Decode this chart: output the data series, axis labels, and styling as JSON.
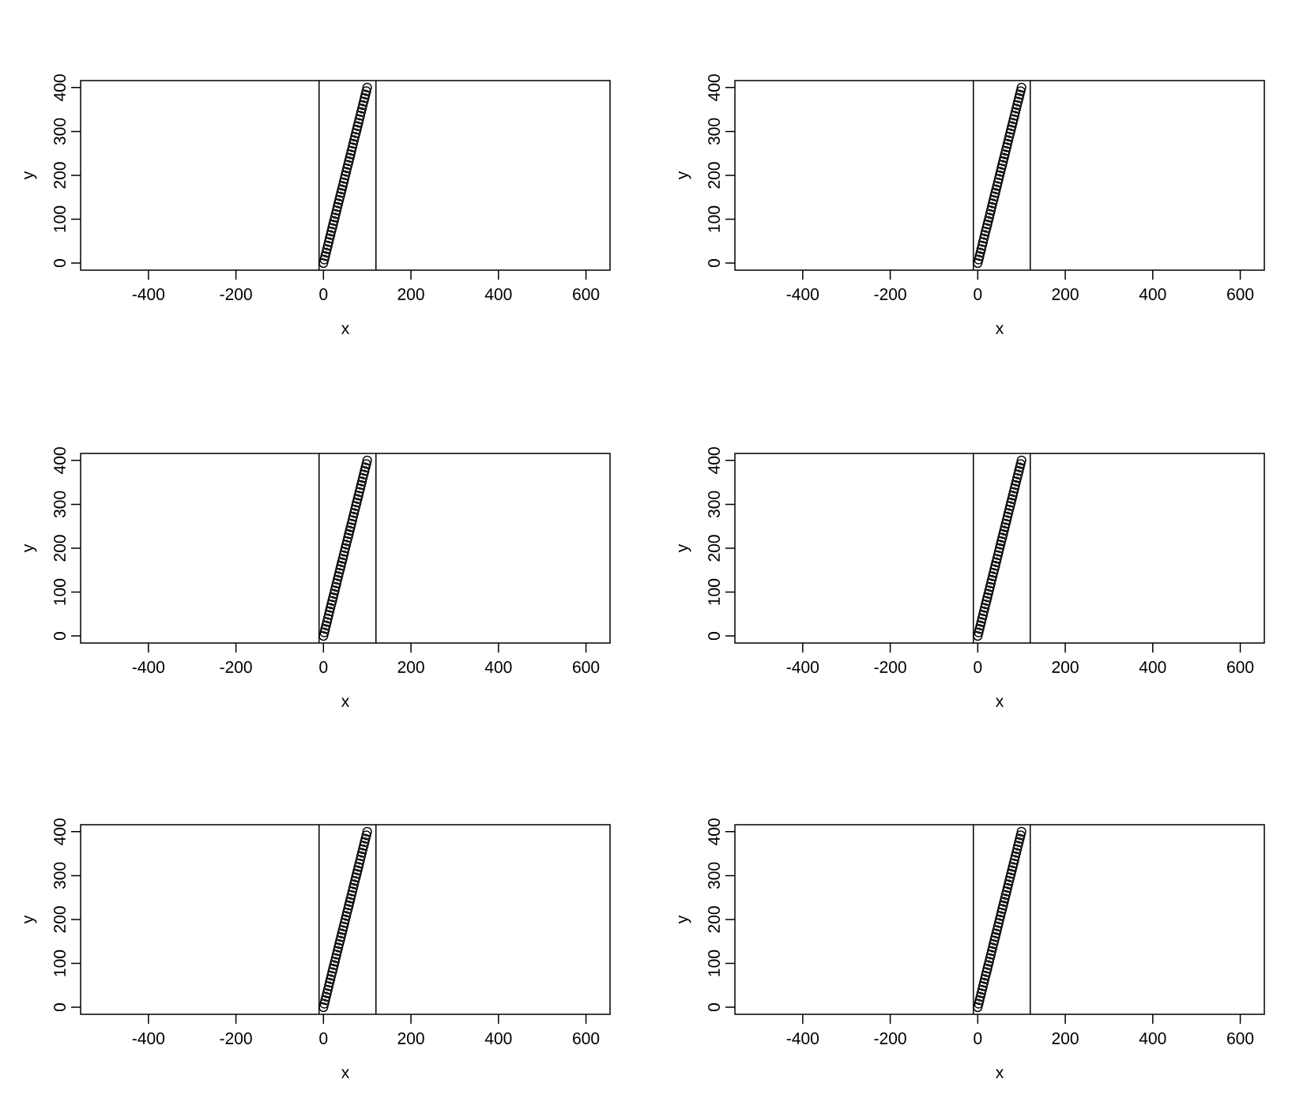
{
  "chart_data": [
    {
      "type": "scatter",
      "xlabel": "x",
      "ylabel": "y",
      "xlim": [
        -555,
        655
      ],
      "ylim": [
        -16,
        416
      ],
      "xticks": [
        -400,
        -200,
        0,
        200,
        400,
        600
      ],
      "yticks": [
        0,
        100,
        200,
        300,
        400
      ],
      "marker": "circle",
      "ref_lines": [
        {
          "axis": "x",
          "value": -10
        },
        {
          "axis": "x",
          "value": 120
        }
      ],
      "x": [
        0,
        2,
        4,
        6,
        8,
        10,
        12,
        14,
        16,
        18,
        20,
        22,
        24,
        26,
        28,
        30,
        32,
        34,
        36,
        38,
        40,
        42,
        44,
        46,
        48,
        50,
        52,
        54,
        56,
        58,
        60,
        62,
        64,
        66,
        68,
        70,
        72,
        74,
        76,
        78,
        80,
        82,
        84,
        86,
        88,
        90,
        92,
        94,
        96,
        98,
        100
      ],
      "series": [
        {
          "color": "#000000",
          "values": [
            0,
            8,
            16,
            24,
            32,
            40,
            48,
            56,
            64,
            72,
            80,
            88,
            96,
            104,
            112,
            120,
            128,
            136,
            144,
            152,
            160,
            168,
            176,
            184,
            192,
            200,
            208,
            216,
            224,
            232,
            240,
            248,
            256,
            264,
            272,
            280,
            288,
            296,
            304,
            312,
            320,
            328,
            336,
            344,
            352,
            360,
            368,
            376,
            384,
            392,
            400
          ]
        }
      ]
    },
    {
      "type": "scatter",
      "xlabel": "x",
      "ylabel": "y",
      "xlim": [
        -555,
        655
      ],
      "ylim": [
        -16,
        416
      ],
      "xticks": [
        -400,
        -200,
        0,
        200,
        400,
        600
      ],
      "yticks": [
        0,
        100,
        200,
        300,
        400
      ],
      "marker": "circle",
      "ref_lines": [
        {
          "axis": "x",
          "value": -10
        },
        {
          "axis": "x",
          "value": 120
        }
      ],
      "x": [
        0,
        2,
        4,
        6,
        8,
        10,
        12,
        14,
        16,
        18,
        20,
        22,
        24,
        26,
        28,
        30,
        32,
        34,
        36,
        38,
        40,
        42,
        44,
        46,
        48,
        50,
        52,
        54,
        56,
        58,
        60,
        62,
        64,
        66,
        68,
        70,
        72,
        74,
        76,
        78,
        80,
        82,
        84,
        86,
        88,
        90,
        92,
        94,
        96,
        98,
        100
      ],
      "series": [
        {
          "color": "#000000",
          "values": [
            0,
            8,
            16,
            24,
            32,
            40,
            48,
            56,
            64,
            72,
            80,
            88,
            96,
            104,
            112,
            120,
            128,
            136,
            144,
            152,
            160,
            168,
            176,
            184,
            192,
            200,
            208,
            216,
            224,
            232,
            240,
            248,
            256,
            264,
            272,
            280,
            288,
            296,
            304,
            312,
            320,
            328,
            336,
            344,
            352,
            360,
            368,
            376,
            384,
            392,
            400
          ]
        }
      ]
    },
    {
      "type": "scatter",
      "xlabel": "x",
      "ylabel": "y",
      "xlim": [
        -555,
        655
      ],
      "ylim": [
        -16,
        416
      ],
      "xticks": [
        -400,
        -200,
        0,
        200,
        400,
        600
      ],
      "yticks": [
        0,
        100,
        200,
        300,
        400
      ],
      "marker": "circle",
      "ref_lines": [
        {
          "axis": "x",
          "value": -10
        },
        {
          "axis": "x",
          "value": 120
        }
      ],
      "x": [
        0,
        2,
        4,
        6,
        8,
        10,
        12,
        14,
        16,
        18,
        20,
        22,
        24,
        26,
        28,
        30,
        32,
        34,
        36,
        38,
        40,
        42,
        44,
        46,
        48,
        50,
        52,
        54,
        56,
        58,
        60,
        62,
        64,
        66,
        68,
        70,
        72,
        74,
        76,
        78,
        80,
        82,
        84,
        86,
        88,
        90,
        92,
        94,
        96,
        98,
        100
      ],
      "series": [
        {
          "color": "#000000",
          "values": [
            0,
            8,
            16,
            24,
            32,
            40,
            48,
            56,
            64,
            72,
            80,
            88,
            96,
            104,
            112,
            120,
            128,
            136,
            144,
            152,
            160,
            168,
            176,
            184,
            192,
            200,
            208,
            216,
            224,
            232,
            240,
            248,
            256,
            264,
            272,
            280,
            288,
            296,
            304,
            312,
            320,
            328,
            336,
            344,
            352,
            360,
            368,
            376,
            384,
            392,
            400
          ]
        }
      ]
    },
    {
      "type": "scatter",
      "xlabel": "x",
      "ylabel": "y",
      "xlim": [
        -555,
        655
      ],
      "ylim": [
        -16,
        416
      ],
      "xticks": [
        -400,
        -200,
        0,
        200,
        400,
        600
      ],
      "yticks": [
        0,
        100,
        200,
        300,
        400
      ],
      "marker": "circle",
      "ref_lines": [
        {
          "axis": "x",
          "value": -10
        },
        {
          "axis": "x",
          "value": 120
        }
      ],
      "x": [
        0,
        2,
        4,
        6,
        8,
        10,
        12,
        14,
        16,
        18,
        20,
        22,
        24,
        26,
        28,
        30,
        32,
        34,
        36,
        38,
        40,
        42,
        44,
        46,
        48,
        50,
        52,
        54,
        56,
        58,
        60,
        62,
        64,
        66,
        68,
        70,
        72,
        74,
        76,
        78,
        80,
        82,
        84,
        86,
        88,
        90,
        92,
        94,
        96,
        98,
        100
      ],
      "series": [
        {
          "color": "#000000",
          "values": [
            0,
            8,
            16,
            24,
            32,
            40,
            48,
            56,
            64,
            72,
            80,
            88,
            96,
            104,
            112,
            120,
            128,
            136,
            144,
            152,
            160,
            168,
            176,
            184,
            192,
            200,
            208,
            216,
            224,
            232,
            240,
            248,
            256,
            264,
            272,
            280,
            288,
            296,
            304,
            312,
            320,
            328,
            336,
            344,
            352,
            360,
            368,
            376,
            384,
            392,
            400
          ]
        }
      ]
    },
    {
      "type": "scatter",
      "xlabel": "x",
      "ylabel": "y",
      "xlim": [
        -555,
        655
      ],
      "ylim": [
        -16,
        416
      ],
      "xticks": [
        -400,
        -200,
        0,
        200,
        400,
        600
      ],
      "yticks": [
        0,
        100,
        200,
        300,
        400
      ],
      "marker": "circle",
      "ref_lines": [
        {
          "axis": "x",
          "value": -10
        },
        {
          "axis": "x",
          "value": 120
        }
      ],
      "x": [
        0,
        2,
        4,
        6,
        8,
        10,
        12,
        14,
        16,
        18,
        20,
        22,
        24,
        26,
        28,
        30,
        32,
        34,
        36,
        38,
        40,
        42,
        44,
        46,
        48,
        50,
        52,
        54,
        56,
        58,
        60,
        62,
        64,
        66,
        68,
        70,
        72,
        74,
        76,
        78,
        80,
        82,
        84,
        86,
        88,
        90,
        92,
        94,
        96,
        98,
        100
      ],
      "series": [
        {
          "color": "#000000",
          "values": [
            0,
            8,
            16,
            24,
            32,
            40,
            48,
            56,
            64,
            72,
            80,
            88,
            96,
            104,
            112,
            120,
            128,
            136,
            144,
            152,
            160,
            168,
            176,
            184,
            192,
            200,
            208,
            216,
            224,
            232,
            240,
            248,
            256,
            264,
            272,
            280,
            288,
            296,
            304,
            312,
            320,
            328,
            336,
            344,
            352,
            360,
            368,
            376,
            384,
            392,
            400
          ]
        }
      ]
    },
    {
      "type": "scatter",
      "xlabel": "x",
      "ylabel": "y",
      "xlim": [
        -555,
        655
      ],
      "ylim": [
        -16,
        416
      ],
      "xticks": [
        -400,
        -200,
        0,
        200,
        400,
        600
      ],
      "yticks": [
        0,
        100,
        200,
        300,
        400
      ],
      "marker": "circle",
      "ref_lines": [
        {
          "axis": "x",
          "value": -10
        },
        {
          "axis": "x",
          "value": 120
        }
      ],
      "x": [
        0,
        2,
        4,
        6,
        8,
        10,
        12,
        14,
        16,
        18,
        20,
        22,
        24,
        26,
        28,
        30,
        32,
        34,
        36,
        38,
        40,
        42,
        44,
        46,
        48,
        50,
        52,
        54,
        56,
        58,
        60,
        62,
        64,
        66,
        68,
        70,
        72,
        74,
        76,
        78,
        80,
        82,
        84,
        86,
        88,
        90,
        92,
        94,
        96,
        98,
        100
      ],
      "series": [
        {
          "color": "#000000",
          "values": [
            0,
            8,
            16,
            24,
            32,
            40,
            48,
            56,
            64,
            72,
            80,
            88,
            96,
            104,
            112,
            120,
            128,
            136,
            144,
            152,
            160,
            168,
            176,
            184,
            192,
            200,
            208,
            216,
            224,
            232,
            240,
            248,
            256,
            264,
            272,
            280,
            288,
            296,
            304,
            312,
            320,
            328,
            336,
            344,
            352,
            360,
            368,
            376,
            384,
            392,
            400
          ]
        }
      ]
    }
  ]
}
